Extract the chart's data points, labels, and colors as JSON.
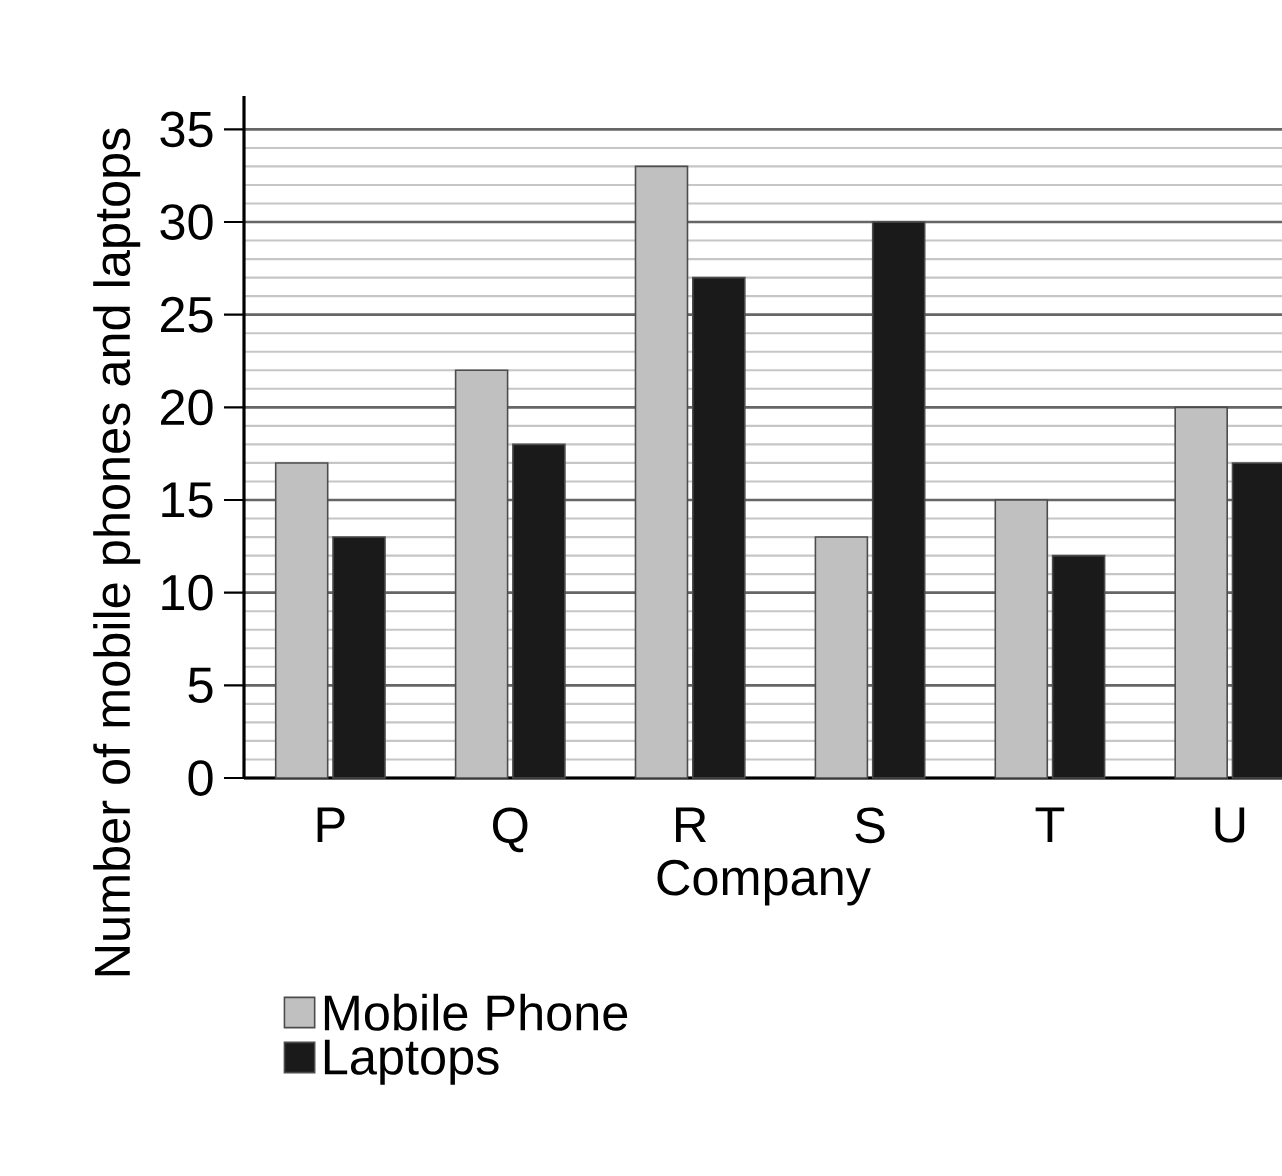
{
  "chart_data": {
    "type": "bar",
    "xlabel": "Company",
    "ylabel": "Number of mobile phones and laptops",
    "categories": [
      "P",
      "Q",
      "R",
      "S",
      "T",
      "U"
    ],
    "series": [
      {
        "name": "Mobile Phone",
        "color": "#c0c0c0",
        "values": [
          17,
          22,
          33,
          13,
          15,
          20
        ]
      },
      {
        "name": "Laptops",
        "color": "#1a1a1a",
        "values": [
          13,
          18,
          27,
          30,
          12,
          17
        ]
      }
    ],
    "ylim": [
      0,
      36.8
    ],
    "yticks": [
      0,
      5,
      10,
      15,
      20,
      25,
      30,
      35
    ],
    "grid": "y",
    "legend": "bottom left"
  }
}
